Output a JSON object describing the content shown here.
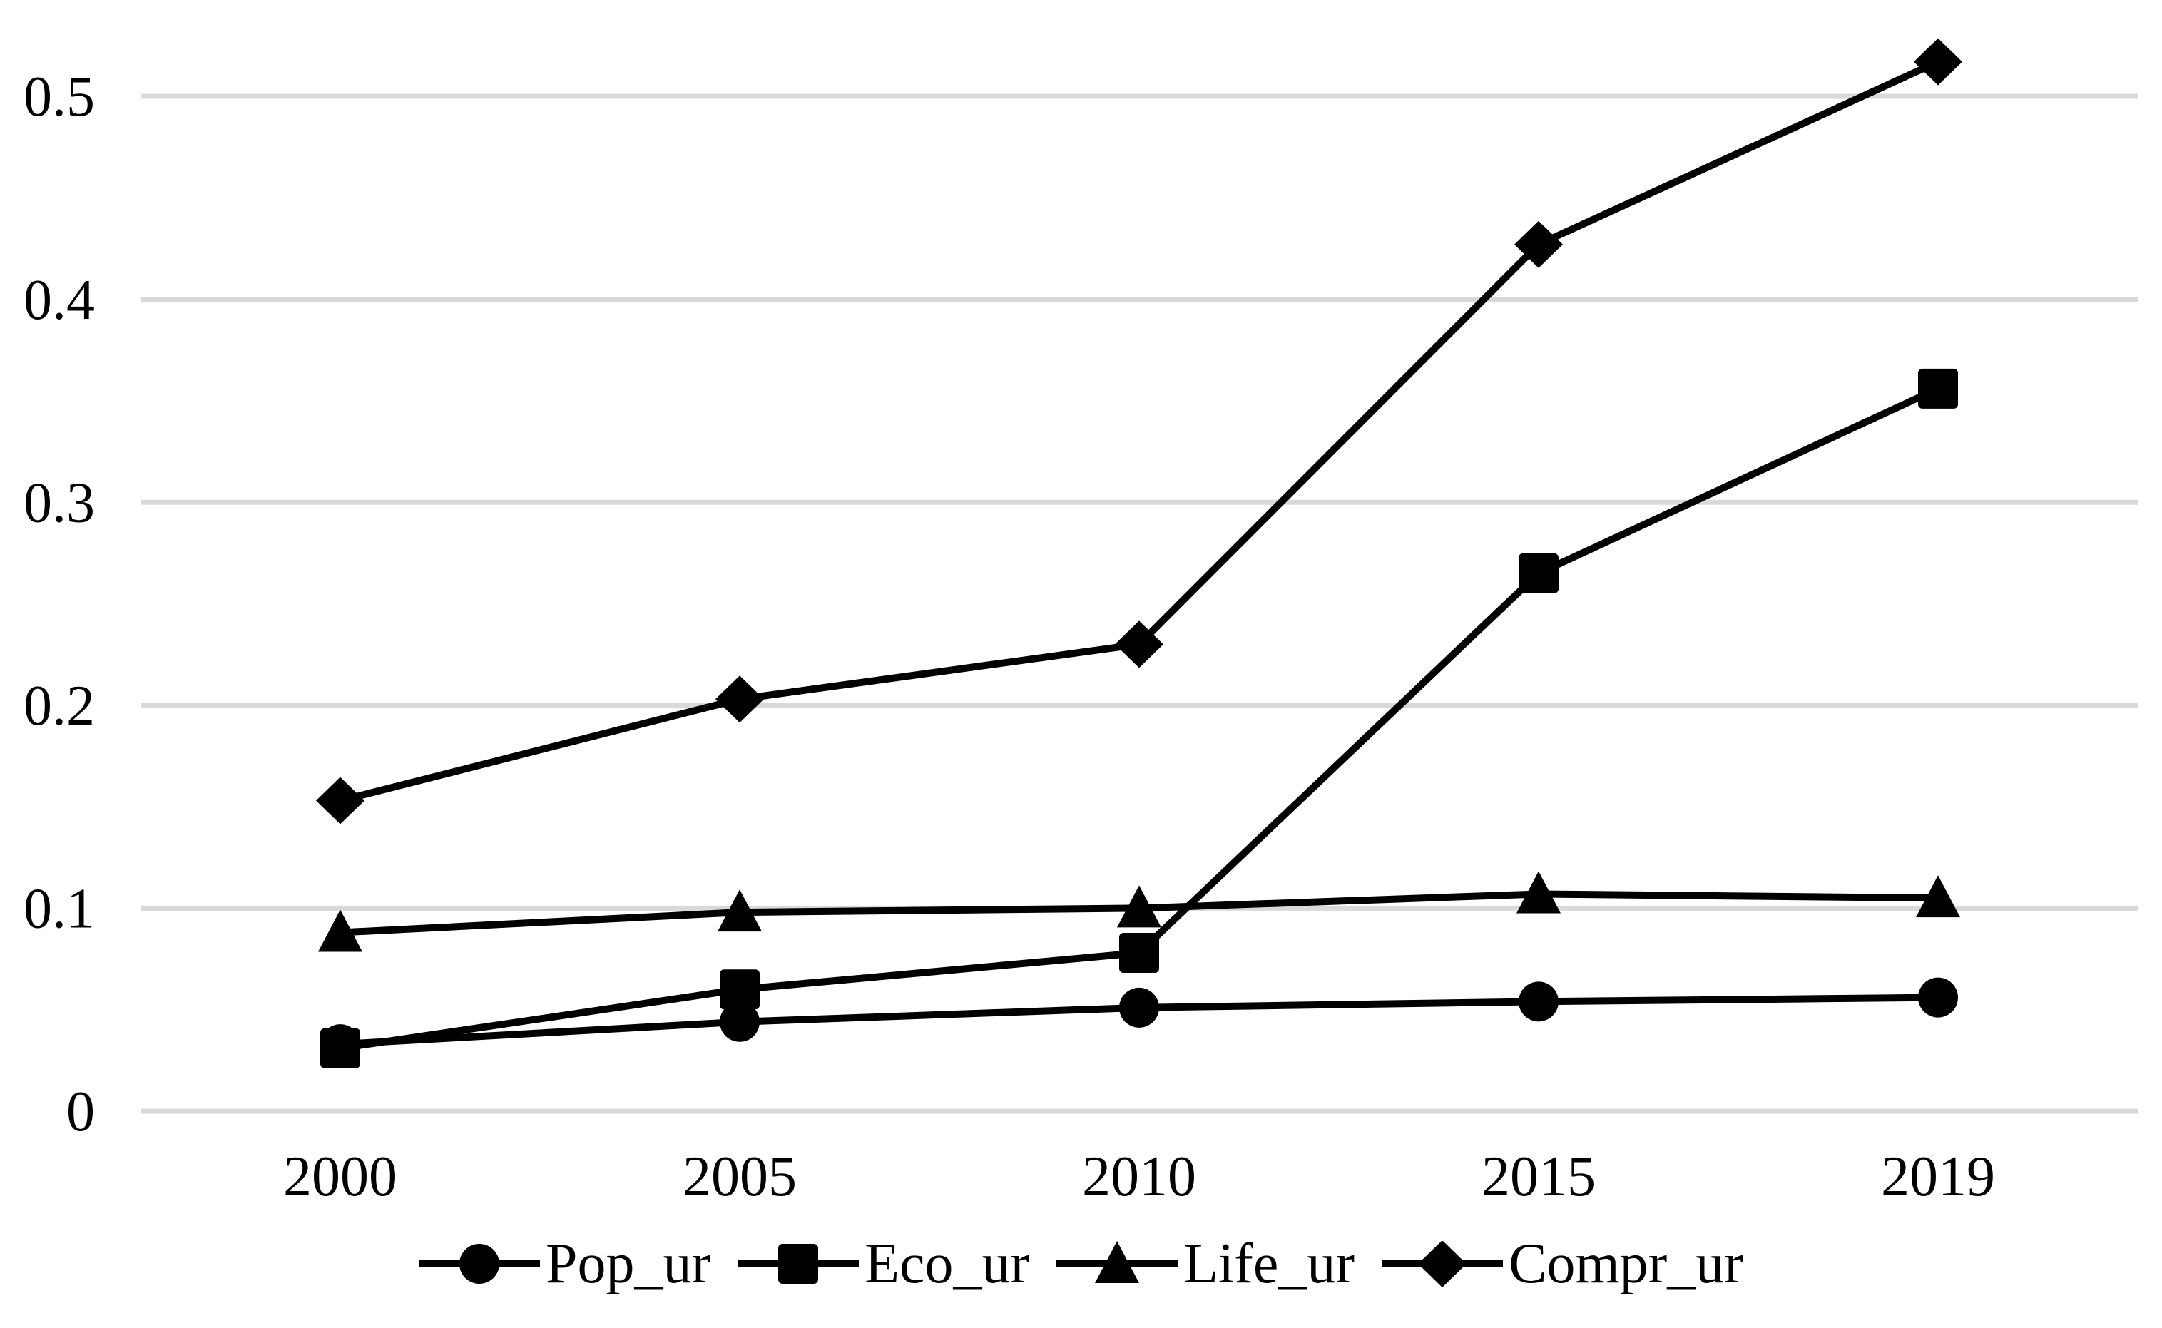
{
  "chart_data": {
    "type": "line",
    "title": "",
    "xlabel": "",
    "ylabel": "",
    "categories": [
      "2000",
      "2005",
      "2010",
      "2015",
      "2019"
    ],
    "series": [
      {
        "name": "Pop_ur",
        "marker": "circle",
        "color": "#000000",
        "values": [
          0.033,
          0.044,
          0.051,
          0.054,
          0.056
        ]
      },
      {
        "name": "Eco_ur",
        "marker": "square",
        "color": "#000000",
        "values": [
          0.031,
          0.06,
          0.078,
          0.265,
          0.356
        ]
      },
      {
        "name": "Life_ur",
        "marker": "triangle",
        "color": "#000000",
        "values": [
          0.088,
          0.098,
          0.1,
          0.107,
          0.105
        ]
      },
      {
        "name": "Compr_ur",
        "marker": "diamond",
        "color": "#000000",
        "values": [
          0.153,
          0.203,
          0.23,
          0.427,
          0.517
        ]
      }
    ],
    "ylim": [
      0,
      0.5
    ],
    "yticks": {
      "values": [
        0,
        0.1,
        0.2,
        0.3,
        0.4,
        0.5
      ],
      "labels": [
        "0",
        "0.1",
        "0.2",
        "0.3",
        "0.4",
        "0.5"
      ]
    },
    "grid": "horizontal",
    "gridline_color": "#d9d9d9",
    "background_color": "#ffffff",
    "legend_position": "bottom"
  }
}
